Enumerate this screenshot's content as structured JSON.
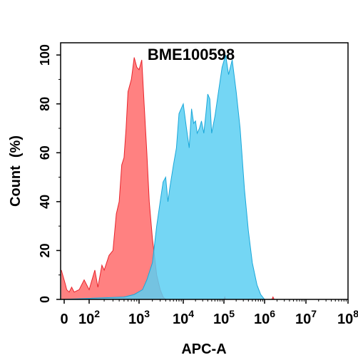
{
  "chart_data": {
    "type": "area",
    "title": "BME100598",
    "xlabel": "APC-A",
    "ylabel": "Count  (%)",
    "x_scale": "biexponential",
    "xlim": [
      0,
      100000000
    ],
    "ylim": [
      0,
      105
    ],
    "y_ticks": [
      "0",
      "20",
      "40",
      "60",
      "80",
      "100"
    ],
    "x_ticks": [
      {
        "base": "0",
        "exp": "",
        "value": 0
      },
      {
        "base": "10",
        "exp": "2",
        "value": 100
      },
      {
        "base": "10",
        "exp": "3",
        "value": 1000
      },
      {
        "base": "10",
        "exp": "4",
        "value": 10000
      },
      {
        "base": "10",
        "exp": "5",
        "value": 100000
      },
      {
        "base": "10",
        "exp": "6",
        "value": 1000000
      },
      {
        "base": "10",
        "exp": "7",
        "value": 10000000
      },
      {
        "base": "10",
        "exp": "8",
        "value": 100000000
      }
    ],
    "series": [
      {
        "color": "#ff6b6b",
        "stroke": "#e8242c",
        "opacity": 0.85,
        "points": [
          [
            0,
            12
          ],
          [
            5,
            6
          ],
          [
            10,
            4
          ],
          [
            20,
            3
          ],
          [
            30,
            5
          ],
          [
            40,
            3
          ],
          [
            60,
            4
          ],
          [
            80,
            8
          ],
          [
            100,
            4
          ],
          [
            130,
            12
          ],
          [
            150,
            5
          ],
          [
            180,
            14
          ],
          [
            200,
            12
          ],
          [
            250,
            18
          ],
          [
            300,
            20
          ],
          [
            350,
            35
          ],
          [
            400,
            40
          ],
          [
            450,
            55
          ],
          [
            500,
            58
          ],
          [
            550,
            70
          ],
          [
            600,
            85
          ],
          [
            700,
            90
          ],
          [
            800,
            99
          ],
          [
            900,
            95
          ],
          [
            1000,
            94
          ],
          [
            1150,
            98
          ],
          [
            1300,
            80
          ],
          [
            1500,
            60
          ],
          [
            1700,
            40
          ],
          [
            2000,
            25
          ],
          [
            2500,
            10
          ],
          [
            3000,
            4
          ],
          [
            3500,
            1
          ],
          [
            4000,
            0
          ],
          [
            100000,
            0
          ],
          [
            105000,
            1
          ],
          [
            110000,
            0
          ],
          [
            1500000,
            0
          ],
          [
            1600000,
            1
          ],
          [
            1700000,
            0
          ],
          [
            100000000,
            0
          ]
        ]
      },
      {
        "color": "#5ccff2",
        "stroke": "#1aa7d9",
        "opacity": 0.85,
        "points": [
          [
            0,
            0
          ],
          [
            500,
            1
          ],
          [
            800,
            2
          ],
          [
            1200,
            4
          ],
          [
            1500,
            8
          ],
          [
            2000,
            15
          ],
          [
            2500,
            30
          ],
          [
            3000,
            40
          ],
          [
            3500,
            48
          ],
          [
            4000,
            50
          ],
          [
            4500,
            40
          ],
          [
            5000,
            46
          ],
          [
            6000,
            55
          ],
          [
            7000,
            62
          ],
          [
            8000,
            76
          ],
          [
            10000,
            80
          ],
          [
            12000,
            70
          ],
          [
            14000,
            62
          ],
          [
            16000,
            78
          ],
          [
            18000,
            72
          ],
          [
            20000,
            73
          ],
          [
            22000,
            68
          ],
          [
            25000,
            70
          ],
          [
            28000,
            73
          ],
          [
            32000,
            68
          ],
          [
            36000,
            76
          ],
          [
            40000,
            84
          ],
          [
            45000,
            82
          ],
          [
            50000,
            68
          ],
          [
            60000,
            75
          ],
          [
            75000,
            86
          ],
          [
            90000,
            95
          ],
          [
            110000,
            100
          ],
          [
            130000,
            92
          ],
          [
            160000,
            98
          ],
          [
            200000,
            85
          ],
          [
            250000,
            70
          ],
          [
            320000,
            45
          ],
          [
            400000,
            28
          ],
          [
            500000,
            15
          ],
          [
            650000,
            6
          ],
          [
            800000,
            2
          ],
          [
            1000000,
            0
          ],
          [
            100000000,
            0
          ]
        ]
      }
    ]
  }
}
